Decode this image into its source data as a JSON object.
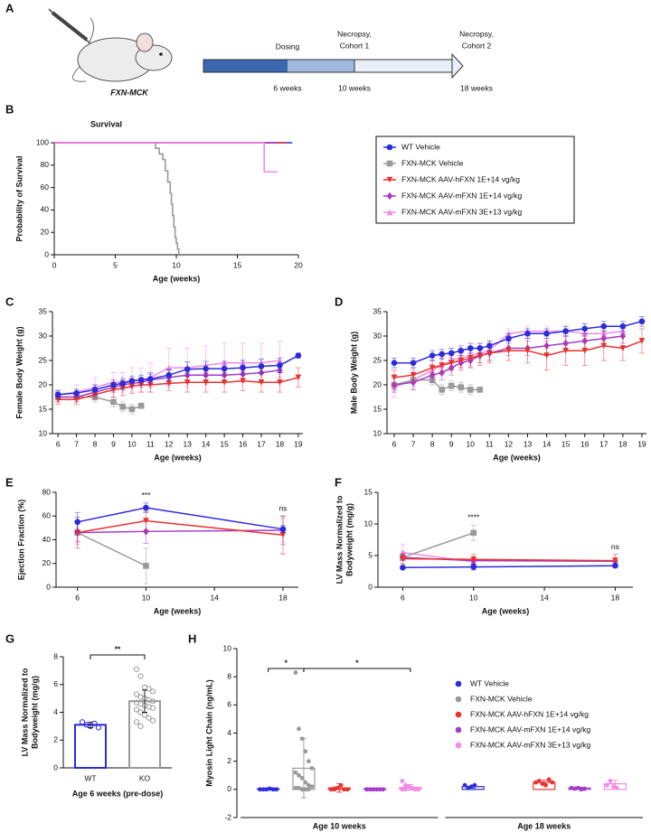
{
  "panel_labels": [
    "A",
    "B",
    "C",
    "D",
    "E",
    "F",
    "G",
    "H"
  ],
  "timeline": {
    "strain": "FXN-MCK",
    "events": [
      {
        "label": [
          "Dosing"
        ],
        "time": "6 weeks"
      },
      {
        "label": [
          "Necropsy,",
          "Cohort 1"
        ],
        "time": "10 weeks"
      },
      {
        "label": [
          "Necropsy,",
          "Cohort 2"
        ],
        "time": "18 weeks"
      }
    ]
  },
  "chart_data": [
    {
      "type": "step",
      "title": "Survival",
      "x_label": "Age (weeks)",
      "y_label": "Probability of Survival",
      "xlim": [
        0,
        20
      ],
      "xticks": [
        0,
        5,
        10,
        15,
        20
      ],
      "ylim": [
        0,
        100
      ],
      "yticks": [
        0,
        20,
        40,
        60,
        80,
        100
      ],
      "legend": "outside right",
      "series": [
        {
          "name": "WT Vehicle",
          "color": "#2b2bdc",
          "marker": "circle",
          "x": [
            0,
            19.5
          ],
          "values": [
            100,
            100
          ]
        },
        {
          "name": "FXN-MCK Vehicle",
          "color": "#9a9a9a",
          "marker": "square",
          "x": [
            0,
            8.3,
            8.6,
            8.9,
            9.1,
            9.3,
            9.5,
            9.6,
            9.7,
            9.8,
            9.9,
            10.0,
            10.1,
            10.2
          ],
          "values": [
            100,
            95,
            90,
            85,
            75,
            65,
            55,
            45,
            35,
            25,
            15,
            10,
            5,
            0
          ]
        },
        {
          "name": "FXN-MCK AAV-hFXN 1E+14 vg/kg",
          "color": "#e8322e",
          "marker": "triangle-down",
          "x": [
            0,
            19.0
          ],
          "values": [
            100,
            100
          ]
        },
        {
          "name": "FXN-MCK AAV-mFXN 1E+14 vg/kg",
          "color": "#a33cc8",
          "marker": "diamond",
          "x": [
            0,
            18.3
          ],
          "values": [
            100,
            100
          ]
        },
        {
          "name": "FXN-MCK AAV-mFXN 3E+13 vg/kg",
          "color": "#f28ae6",
          "marker": "triangle-up",
          "x": [
            0,
            17.2,
            18.3
          ],
          "values": [
            100,
            74,
            74
          ]
        }
      ]
    },
    {
      "type": "line",
      "x_label": "Age (weeks)",
      "y_label": "Female Body Weight (g)",
      "x": [
        6,
        7,
        8,
        9,
        9.5,
        10,
        10.5,
        11,
        12,
        13,
        14,
        15,
        16,
        17,
        18,
        19
      ],
      "xlim": [
        5.7,
        19.25
      ],
      "xticks": [
        6,
        7,
        8,
        9,
        10,
        11,
        12,
        13,
        14,
        15,
        16,
        17,
        18,
        19
      ],
      "ylim": [
        10,
        35
      ],
      "yticks": [
        10,
        15,
        20,
        25,
        30,
        35
      ],
      "series": [
        {
          "color": "#f28ae6",
          "marker": "triangle-up",
          "values": [
            18,
            18.5,
            19.5,
            20.5,
            20.5,
            21,
            21,
            21.5,
            23.5,
            23.5,
            24,
            24.5,
            24.5,
            24.5,
            25,
            null
          ],
          "errors": [
            1,
            1.5,
            2,
            2,
            2,
            2.5,
            2.5,
            3,
            4,
            4,
            4,
            4,
            4,
            4,
            4,
            null
          ]
        },
        {
          "color": "#9a9a9a",
          "marker": "square",
          "values": [
            17.5,
            17.5,
            17.5,
            16.5,
            15.5,
            15,
            15.7,
            null,
            null,
            null,
            null,
            null,
            null,
            null,
            null,
            null
          ],
          "errors": [
            1,
            1,
            1,
            1,
            1,
            1,
            0.5,
            null,
            null,
            null,
            null,
            null,
            null,
            null,
            null,
            null
          ]
        },
        {
          "color": "#a33cc8",
          "marker": "diamond",
          "values": [
            17.5,
            17.5,
            18.5,
            19.5,
            20,
            20.3,
            20.5,
            21,
            21.5,
            22,
            22,
            22,
            22.2,
            22.5,
            23,
            null
          ],
          "errors": [
            1,
            1,
            1,
            1,
            1,
            1,
            1,
            1.5,
            1.5,
            1.5,
            1.5,
            1.5,
            1.5,
            1.5,
            1.5,
            null
          ]
        },
        {
          "color": "#e8322e",
          "marker": "triangle-down",
          "values": [
            17,
            17,
            18,
            19,
            19.3,
            19.7,
            20,
            20,
            20.3,
            20.5,
            20.5,
            20.5,
            20.8,
            20.5,
            20.5,
            21.5
          ],
          "errors": [
            1,
            1,
            1,
            1.5,
            1.5,
            1.5,
            1.5,
            1.5,
            1.5,
            2,
            2,
            2,
            2,
            2,
            2,
            2
          ]
        },
        {
          "color": "#2b2bdc",
          "marker": "circle",
          "values": [
            18,
            18.3,
            19,
            20,
            20.3,
            20.8,
            21,
            21.2,
            22,
            23.2,
            23.3,
            23.3,
            23.5,
            23.8,
            24,
            26
          ],
          "errors": [
            0.8,
            0.8,
            1,
            1,
            1,
            1,
            1,
            1,
            1.2,
            1.5,
            1.5,
            1.5,
            1.5,
            1.5,
            1.5,
            0.5
          ]
        }
      ]
    },
    {
      "type": "line",
      "x_label": "Age (weeks)",
      "y_label": "Male Body Weight (g)",
      "x": [
        6,
        7,
        8,
        8.5,
        9,
        9.5,
        10,
        10.5,
        11,
        12,
        13,
        14,
        15,
        16,
        17,
        18,
        19
      ],
      "xlim": [
        5.62,
        19.24
      ],
      "xticks": [
        6,
        7,
        8,
        9,
        10,
        11,
        12,
        13,
        14,
        15,
        16,
        17,
        18,
        19
      ],
      "ylim": [
        10,
        35
      ],
      "yticks": [
        10,
        15,
        20,
        25,
        30,
        35
      ],
      "series": [
        {
          "color": "#f28ae6",
          "marker": "triangle-up",
          "values": [
            19.5,
            21,
            23,
            24,
            25,
            25.5,
            26,
            26.5,
            27,
            30.5,
            31,
            31,
            31,
            30.5,
            30.5,
            31,
            null
          ],
          "errors": [
            2,
            2,
            2,
            2,
            2,
            2,
            2,
            2,
            2,
            1,
            1,
            1,
            1,
            1,
            1,
            1,
            null
          ]
        },
        {
          "color": "#9a9a9a",
          "marker": "square",
          "values": [
            20,
            21,
            21,
            19,
            19.8,
            19.5,
            19,
            19,
            null,
            null,
            null,
            null,
            null,
            null,
            null,
            null,
            null
          ],
          "errors": [
            1.5,
            1.5,
            1,
            1,
            1,
            1,
            1,
            0.5,
            null,
            null,
            null,
            null,
            null,
            null,
            null,
            null,
            null
          ]
        },
        {
          "color": "#a33cc8",
          "marker": "diamond",
          "values": [
            20,
            20.5,
            22,
            22.5,
            23.5,
            24.5,
            25,
            26,
            26.5,
            27.5,
            27.5,
            28,
            28.5,
            29,
            29.5,
            30,
            null
          ],
          "errors": [
            1.5,
            1.5,
            1.5,
            1.5,
            1.5,
            1.5,
            1.5,
            1.5,
            1.5,
            1.5,
            1.5,
            1.5,
            1.5,
            1.5,
            1.5,
            1.5,
            null
          ]
        },
        {
          "color": "#e8322e",
          "marker": "triangle-down",
          "values": [
            21.5,
            22,
            23.5,
            24,
            24.5,
            25,
            25.5,
            26,
            26.5,
            27,
            27,
            26,
            27,
            27,
            28,
            27.5,
            29
          ],
          "errors": [
            1.5,
            1.5,
            1.5,
            1.5,
            1.5,
            1.5,
            2,
            2,
            2,
            2,
            2.5,
            3,
            3,
            3,
            3,
            2.5,
            2.5
          ]
        },
        {
          "color": "#2b2bdc",
          "marker": "circle",
          "values": [
            24.5,
            24.5,
            26,
            26.3,
            26.5,
            27,
            27.5,
            27.5,
            28,
            29.5,
            30.5,
            30.5,
            31,
            31.5,
            32,
            32,
            33
          ],
          "errors": [
            1,
            1,
            1,
            1,
            1,
            1,
            1,
            1,
            1,
            1,
            1,
            1,
            1,
            1,
            1,
            1,
            1
          ]
        }
      ]
    },
    {
      "type": "line",
      "x_label": "Age (weeks)",
      "y_label": "Ejection Fraction (%)",
      "x": [
        6,
        10,
        18
      ],
      "xlim": [
        4.75,
        18.9
      ],
      "xticks": [
        6,
        10,
        14,
        18
      ],
      "ylim": [
        0,
        80
      ],
      "yticks": [
        0,
        20,
        40,
        60,
        80
      ],
      "annotations": [
        {
          "x": 10,
          "text": "***"
        },
        {
          "x": 18,
          "text": "ns"
        }
      ],
      "series": [
        {
          "color": "#f28ae6",
          "marker": "triangle-up",
          "values": [
            49,
            null,
            48
          ],
          "errors": [
            10,
            null,
            10
          ]
        },
        {
          "color": "#9a9a9a",
          "marker": "square",
          "values": [
            46,
            18,
            null
          ],
          "errors": [
            10,
            15,
            null
          ]
        },
        {
          "color": "#a33cc8",
          "marker": "diamond",
          "values": [
            46,
            47,
            48
          ],
          "errors": [
            8,
            10,
            12
          ]
        },
        {
          "color": "#e8322e",
          "marker": "triangle-down",
          "values": [
            46,
            56,
            44
          ],
          "errors": [
            13,
            8,
            16
          ]
        },
        {
          "color": "#2b2bdc",
          "marker": "circle",
          "values": [
            55,
            67,
            49
          ],
          "errors": [
            8,
            4,
            3
          ]
        }
      ]
    },
    {
      "type": "line",
      "x_label": "Age (weeks)",
      "y_label": [
        "LV Mass Normalized to",
        "Bodyweight (mg/g)"
      ],
      "x": [
        6,
        10,
        18
      ],
      "xlim": [
        4.6,
        19
      ],
      "xticks": [
        6,
        10,
        14,
        18
      ],
      "ylim": [
        0,
        15
      ],
      "yticks": [
        0,
        5,
        10,
        15
      ],
      "annotations": [
        {
          "x": 10,
          "text": "****"
        },
        {
          "x": 18,
          "text": "ns"
        }
      ],
      "series": [
        {
          "color": "#f28ae6",
          "marker": "triangle-up",
          "values": [
            5.5,
            4.0,
            null
          ],
          "errors": [
            1.3,
            0.5,
            null
          ]
        },
        {
          "color": "#9a9a9a",
          "marker": "square",
          "values": [
            4.7,
            8.6,
            null
          ],
          "errors": [
            1,
            1.2,
            null
          ]
        },
        {
          "color": "#a33cc8",
          "marker": "diamond",
          "values": [
            4.7,
            4.2,
            4.1
          ],
          "errors": [
            0.5,
            0.5,
            0.5
          ]
        },
        {
          "color": "#e8322e",
          "marker": "triangle-down",
          "values": [
            4.5,
            4.4,
            4.2
          ],
          "errors": [
            0.8,
            0.8,
            1
          ]
        },
        {
          "color": "#2b2bdc",
          "marker": "circle",
          "values": [
            3.1,
            3.2,
            3.4
          ],
          "errors": [
            0.2,
            0.5,
            0.3
          ]
        }
      ]
    },
    {
      "type": "bar_scatter",
      "y_label": [
        "LV Mass Normalized to",
        "Bodyweight (mg/g)"
      ],
      "x_label": "Age 6 weeks (pre-dose)",
      "categories": [
        "WT",
        "KO"
      ],
      "colors": [
        "#2b2bdc",
        "#9a9a9a"
      ],
      "values": [
        3.1,
        4.8
      ],
      "errors": [
        0.2,
        0.8
      ],
      "points": [
        [
          3.3,
          3.1,
          3.0,
          3.2,
          2.9
        ],
        [
          7.1,
          6.6,
          5.8,
          5.7,
          5.5,
          5.3,
          5.1,
          5.0,
          4.9,
          4.8,
          4.7,
          4.6,
          4.5,
          4.4,
          4.3,
          4.2,
          4.0,
          3.8,
          3.6,
          3.4,
          3.3,
          3.0
        ]
      ],
      "ylim": [
        0,
        8
      ],
      "yticks": [
        0,
        2,
        4,
        6,
        8
      ],
      "annotation": "**"
    },
    {
      "type": "grouped_bar_scatter",
      "y_label": "Myosin Light Chain (ng/mL)",
      "groups": [
        "Age 10 weeks",
        "Age 18 weeks"
      ],
      "ylim": [
        -2,
        10
      ],
      "yticks": [
        -2,
        0,
        2,
        4,
        6,
        8,
        10
      ],
      "annotations": [
        "*",
        "*"
      ],
      "series": [
        {
          "name": "WT Vehicle",
          "color": "#2b2bdc",
          "values": [
            0.05,
            0.2
          ],
          "errors": [
            0.05,
            0.1
          ],
          "points": [
            [
              0,
              0,
              0,
              0.05,
              0,
              0
            ],
            [
              0.3,
              0.1,
              0.2,
              0.3
            ]
          ]
        },
        {
          "name": "FXN-MCK Vehicle",
          "color": "#9a9a9a",
          "values": [
            1.5,
            null
          ],
          "errors": [
            2.1,
            null
          ],
          "points": [
            [
              8.3,
              4.3,
              3.6,
              2.7,
              2,
              1.5,
              1.2,
              1,
              0.8,
              0.5,
              0.3,
              0.2,
              0.1,
              0.1,
              0,
              0,
              0
            ],
            []
          ]
        },
        {
          "name": "FXN-MCK AAV-hFXN 1E+14 vg/kg",
          "color": "#e8322e",
          "values": [
            0.1,
            0.5
          ],
          "errors": [
            0.3,
            0.15
          ],
          "points": [
            [
              0,
              0,
              0.1,
              0.3,
              0,
              0,
              0,
              0.05
            ],
            [
              0.5,
              0.6,
              0.4,
              0.3,
              0.7,
              0.5
            ]
          ]
        },
        {
          "name": "FXN-MCK AAV-mFXN 1E+14 vg/kg",
          "color": "#a33cc8",
          "values": [
            0.05,
            0.1
          ],
          "errors": [
            0.05,
            0.05
          ],
          "points": [
            [
              0,
              0,
              0,
              0,
              0,
              0,
              0
            ],
            [
              0.1,
              0.05,
              0.1,
              0,
              0.05
            ]
          ]
        },
        {
          "name": "FXN-MCK AAV-mFXN 3E+13 vg/kg",
          "color": "#f28ae6",
          "values": [
            0.15,
            0.4
          ],
          "errors": [
            0.2,
            0.25
          ],
          "points": [
            [
              0.6,
              0.3,
              0.2,
              0.1,
              0,
              0,
              0,
              0
            ],
            [
              0.3,
              0.6,
              0.2,
              0.1
            ]
          ]
        }
      ]
    }
  ]
}
